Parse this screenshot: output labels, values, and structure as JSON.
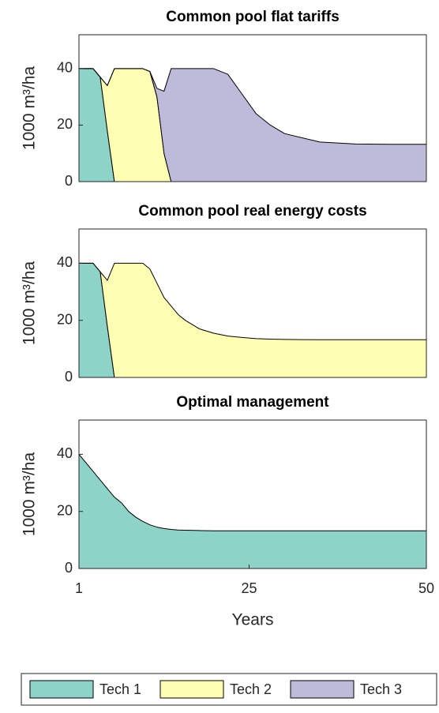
{
  "chart_data": [
    {
      "type": "area",
      "title": "Common pool flat tariffs",
      "ylabel": "1000 m³/ha",
      "x": [
        1,
        2,
        3,
        4,
        5,
        6,
        7,
        8,
        9,
        10,
        11,
        12,
        13,
        14,
        15,
        16,
        18,
        20,
        22,
        24,
        26,
        28,
        30,
        35,
        40,
        45,
        50
      ],
      "series": [
        {
          "name": "Tech 1",
          "color": "#8dd3c7",
          "values": [
            40,
            40,
            40,
            37,
            18,
            0,
            0,
            0,
            0,
            0,
            0,
            0,
            0,
            0,
            0,
            0,
            0,
            0,
            0,
            0,
            0,
            0,
            0,
            0,
            0,
            0,
            0
          ]
        },
        {
          "name": "Tech 2",
          "color": "#ffffb3",
          "values": [
            0,
            0,
            0,
            0,
            16,
            40,
            40,
            40,
            40,
            40,
            39,
            30,
            10,
            0,
            0,
            0,
            0,
            0,
            0,
            0,
            0,
            0,
            0,
            0,
            0,
            0,
            0
          ]
        },
        {
          "name": "Tech 3",
          "color": "#bebada",
          "values": [
            0,
            0,
            0,
            0,
            0,
            0,
            0,
            0,
            0,
            0,
            0,
            3,
            22,
            40,
            40,
            40,
            40,
            40,
            38,
            31,
            24,
            20,
            17,
            14,
            13.3,
            13.2,
            13.2
          ]
        }
      ],
      "xlim": [
        1,
        50
      ],
      "ylim": [
        0,
        52
      ],
      "yticks": [
        0,
        20,
        40
      ],
      "legend": "bottom"
    },
    {
      "type": "area",
      "title": "Common pool real energy costs",
      "ylabel": "1000 m³/ha",
      "x": [
        1,
        2,
        3,
        4,
        5,
        6,
        7,
        8,
        9,
        10,
        11,
        12,
        13,
        14,
        15,
        16,
        18,
        20,
        22,
        24,
        26,
        28,
        30,
        35,
        40,
        45,
        50
      ],
      "series": [
        {
          "name": "Tech 1",
          "color": "#8dd3c7",
          "values": [
            40,
            40,
            40,
            37,
            18,
            0,
            0,
            0,
            0,
            0,
            0,
            0,
            0,
            0,
            0,
            0,
            0,
            0,
            0,
            0,
            0,
            0,
            0,
            0,
            0,
            0,
            0
          ]
        },
        {
          "name": "Tech 2",
          "color": "#ffffb3",
          "values": [
            0,
            0,
            0,
            0,
            16,
            40,
            40,
            40,
            40,
            40,
            38,
            33,
            28,
            25,
            22,
            20,
            17,
            15.5,
            14.5,
            14,
            13.6,
            13.4,
            13.3,
            13.2,
            13.2,
            13.2,
            13.2
          ]
        }
      ],
      "xlim": [
        1,
        50
      ],
      "ylim": [
        0,
        52
      ],
      "yticks": [
        0,
        20,
        40
      ]
    },
    {
      "type": "area",
      "title": "Optimal management",
      "ylabel": "1000 m³/ha",
      "xlabel": "Years",
      "x": [
        1,
        2,
        3,
        4,
        5,
        6,
        7,
        8,
        9,
        10,
        11,
        12,
        13,
        14,
        15,
        16,
        18,
        20,
        22,
        24,
        26,
        28,
        30,
        35,
        40,
        45,
        50
      ],
      "series": [
        {
          "name": "Tech 1",
          "color": "#8dd3c7",
          "values": [
            40,
            37,
            34,
            31,
            28,
            25,
            23,
            20,
            18,
            16.5,
            15.3,
            14.5,
            14,
            13.7,
            13.5,
            13.4,
            13.3,
            13.2,
            13.2,
            13.2,
            13.2,
            13.2,
            13.2,
            13.2,
            13.2,
            13.2,
            13.2
          ]
        }
      ],
      "xlim": [
        1,
        50
      ],
      "ylim": [
        0,
        52
      ],
      "yticks": [
        0,
        20,
        40
      ],
      "xticks": [
        1,
        25,
        50
      ]
    }
  ]
}
